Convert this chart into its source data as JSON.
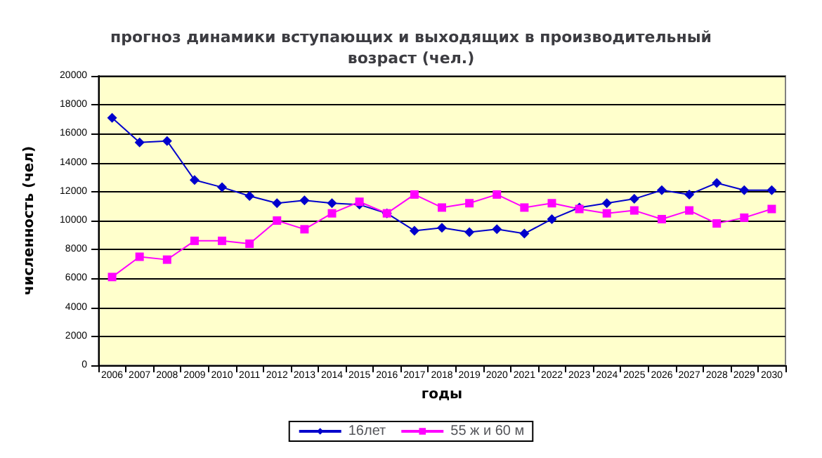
{
  "chart_data": {
    "type": "line",
    "title": "прогноз динамики вступающих и выходящих в производительный\nвозраст (чел.)",
    "xlabel": "годы",
    "ylabel": "численность (чел)",
    "categories": [
      "2006",
      "2007",
      "2008",
      "2009",
      "2010",
      "2011",
      "2012",
      "2013",
      "2014",
      "2015",
      "2016",
      "2017",
      "2018",
      "2019",
      "2020",
      "2021",
      "2022",
      "2023",
      "2024",
      "2025",
      "2026",
      "2027",
      "2028",
      "2029",
      "2030"
    ],
    "series": [
      {
        "name": "16лет",
        "color": "#0000cc",
        "marker": "diamond",
        "values": [
          17100,
          15400,
          15500,
          12800,
          12300,
          11700,
          11200,
          11400,
          11200,
          11100,
          10500,
          9300,
          9500,
          9200,
          9400,
          9100,
          10100,
          10900,
          11200,
          11500,
          12100,
          11800,
          12600,
          12100,
          12100
        ]
      },
      {
        "name": "55 ж и 60 м",
        "color": "#ff00ff",
        "marker": "square",
        "values": [
          6100,
          7500,
          7300,
          8600,
          8600,
          8400,
          10000,
          9400,
          10500,
          11300,
          10500,
          11800,
          10900,
          11200,
          11800,
          10900,
          11200,
          10800,
          10500,
          10700,
          10100,
          10700,
          9800,
          10200,
          10800
        ]
      }
    ],
    "ylim": [
      0,
      20000
    ],
    "yticks": [
      0,
      2000,
      4000,
      6000,
      8000,
      10000,
      12000,
      14000,
      16000,
      18000,
      20000
    ],
    "grid": "y",
    "legend": "bottom"
  }
}
